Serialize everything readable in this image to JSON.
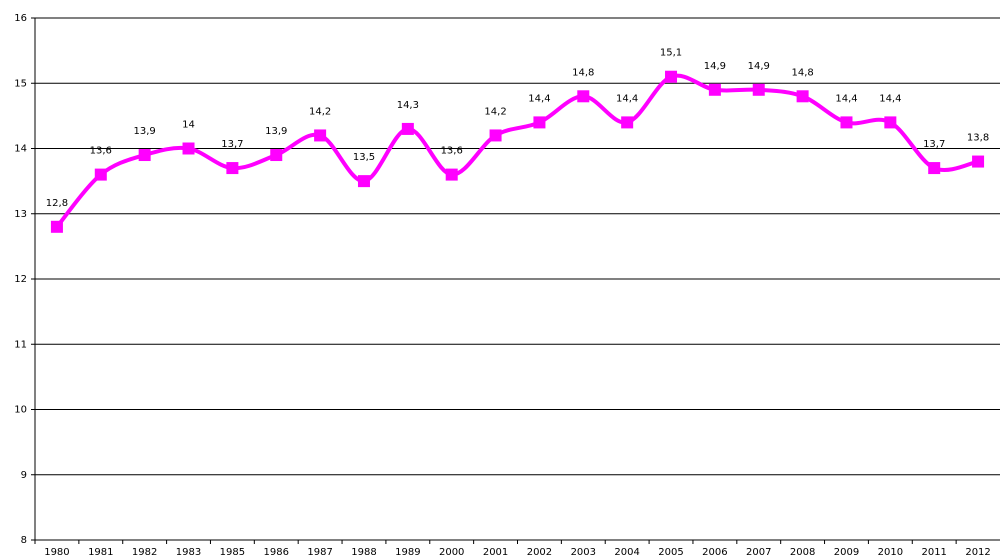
{
  "chart_data": {
    "type": "line",
    "categories": [
      "1980",
      "1981",
      "1982",
      "1983",
      "1985",
      "1986",
      "1987",
      "1988",
      "1989",
      "2000",
      "2001",
      "2002",
      "2003",
      "2004",
      "2005",
      "2006",
      "2007",
      "2008",
      "2009",
      "2010",
      "2011",
      "2012"
    ],
    "values": [
      12.8,
      13.6,
      13.9,
      14.0,
      13.7,
      13.9,
      14.2,
      13.5,
      14.3,
      13.6,
      14.2,
      14.4,
      14.8,
      14.4,
      15.1,
      14.9,
      14.9,
      14.8,
      14.4,
      14.4,
      13.7,
      13.8
    ],
    "value_labels": [
      "12,8",
      "13,6",
      "13,9",
      "14",
      "13,7",
      "13,9",
      "14,2",
      "13,5",
      "14,3",
      "13,6",
      "14,2",
      "14,4",
      "14,8",
      "14,4",
      "15,1",
      "14,9",
      "14,9",
      "14,8",
      "14,4",
      "14,4",
      "13,7",
      "13,8"
    ],
    "color": "#ff00ff",
    "ylim": [
      8,
      16
    ],
    "yticks": [
      8,
      9,
      10,
      11,
      12,
      13,
      14,
      15,
      16
    ],
    "grid": true
  }
}
